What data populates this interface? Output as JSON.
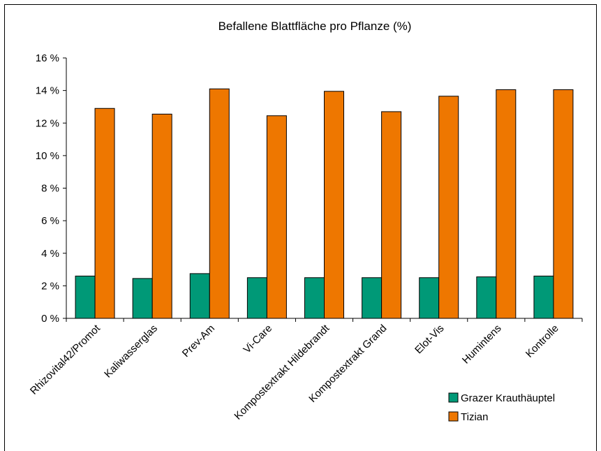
{
  "chart_data": {
    "type": "bar",
    "title": "Befallene Blattfläche pro Pflanze (%)",
    "xlabel": "",
    "ylabel": "",
    "ylim": [
      0,
      16
    ],
    "yticks": [
      0,
      2,
      4,
      6,
      8,
      10,
      12,
      14,
      16
    ],
    "ytick_labels": [
      "0 %",
      "2 %",
      "4 %",
      "6 %",
      "8 %",
      "10 %",
      "12 %",
      "14 %",
      "16 %"
    ],
    "categories": [
      "Rhizovital42/Promot",
      "Kaliwasserglas",
      "Prev-Am",
      "Vi-Care",
      "Kompostextrakt Hildebrandt",
      "Kompostextrakt Grand",
      "Elot-Vis",
      "Humintens",
      "Kontrolle"
    ],
    "series": [
      {
        "name": "Grazer Krauthäuptel",
        "color": "#009977",
        "values": [
          2.6,
          2.45,
          2.75,
          2.5,
          2.5,
          2.5,
          2.5,
          2.55,
          2.6
        ]
      },
      {
        "name": "Tizian",
        "color": "#EE7700",
        "values": [
          12.9,
          12.55,
          14.1,
          12.45,
          13.95,
          12.7,
          13.65,
          14.05,
          14.05
        ]
      }
    ],
    "grid": false,
    "legend_position": "bottom-right"
  }
}
